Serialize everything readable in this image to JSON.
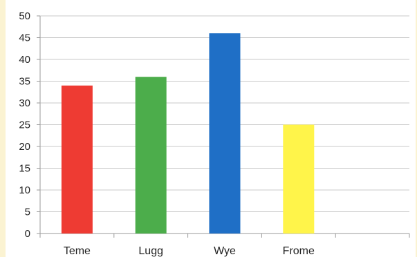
{
  "chart_data": {
    "type": "bar",
    "title": "",
    "xlabel": "",
    "ylabel": "",
    "categories": [
      "Teme",
      "Lugg",
      "Wye",
      "Frome"
    ],
    "values": [
      34,
      36,
      46,
      25
    ],
    "colors": [
      "#ee3b33",
      "#4cad4b",
      "#1f6fc6",
      "#fff44a"
    ],
    "ylim": [
      0,
      50
    ],
    "yticks": [
      "0",
      "5",
      "10",
      "15",
      "20",
      "25",
      "30",
      "35",
      "40",
      "45",
      "50"
    ],
    "grid": true,
    "legend": "none"
  }
}
